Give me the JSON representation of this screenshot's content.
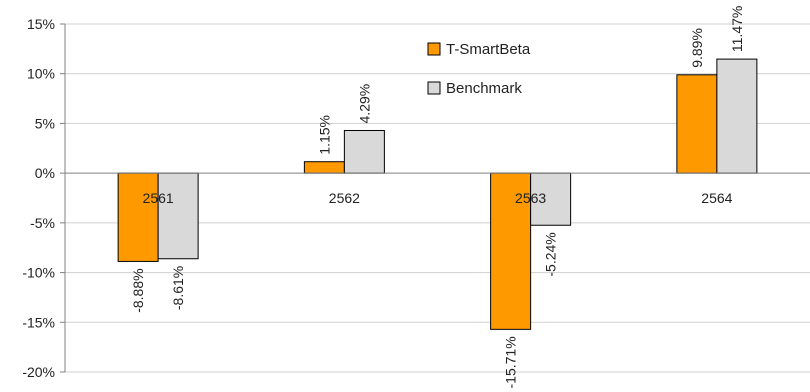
{
  "chart_data": {
    "type": "bar",
    "categories": [
      "2561",
      "2562",
      "2563",
      "2564"
    ],
    "series": [
      {
        "name": "T-SmartBeta",
        "values": [
          -8.88,
          1.15,
          -15.71,
          9.89
        ],
        "labels": [
          "-8.88%",
          "1.15%",
          "-15.71%",
          "9.89%"
        ]
      },
      {
        "name": "Benchmark",
        "values": [
          -8.61,
          4.29,
          -5.24,
          11.47
        ],
        "labels": [
          "-8.61%",
          "4.29%",
          "-5.24%",
          "11.47%"
        ]
      }
    ],
    "yticks": [
      15,
      10,
      5,
      0,
      -5,
      -10,
      -15,
      -20
    ],
    "ytick_labels": [
      "15%",
      "10%",
      "5%",
      "0%",
      "-5%",
      "-10%",
      "-15%",
      "-20%"
    ],
    "ylim": [
      -20,
      15
    ],
    "grid": true,
    "legend_position": "top-center",
    "colors": {
      "T-SmartBeta": "#FF9900",
      "Benchmark": "#D9D9D9",
      "edge": "#000000",
      "grid": "#D0D0D0",
      "axis": "#808080"
    }
  }
}
